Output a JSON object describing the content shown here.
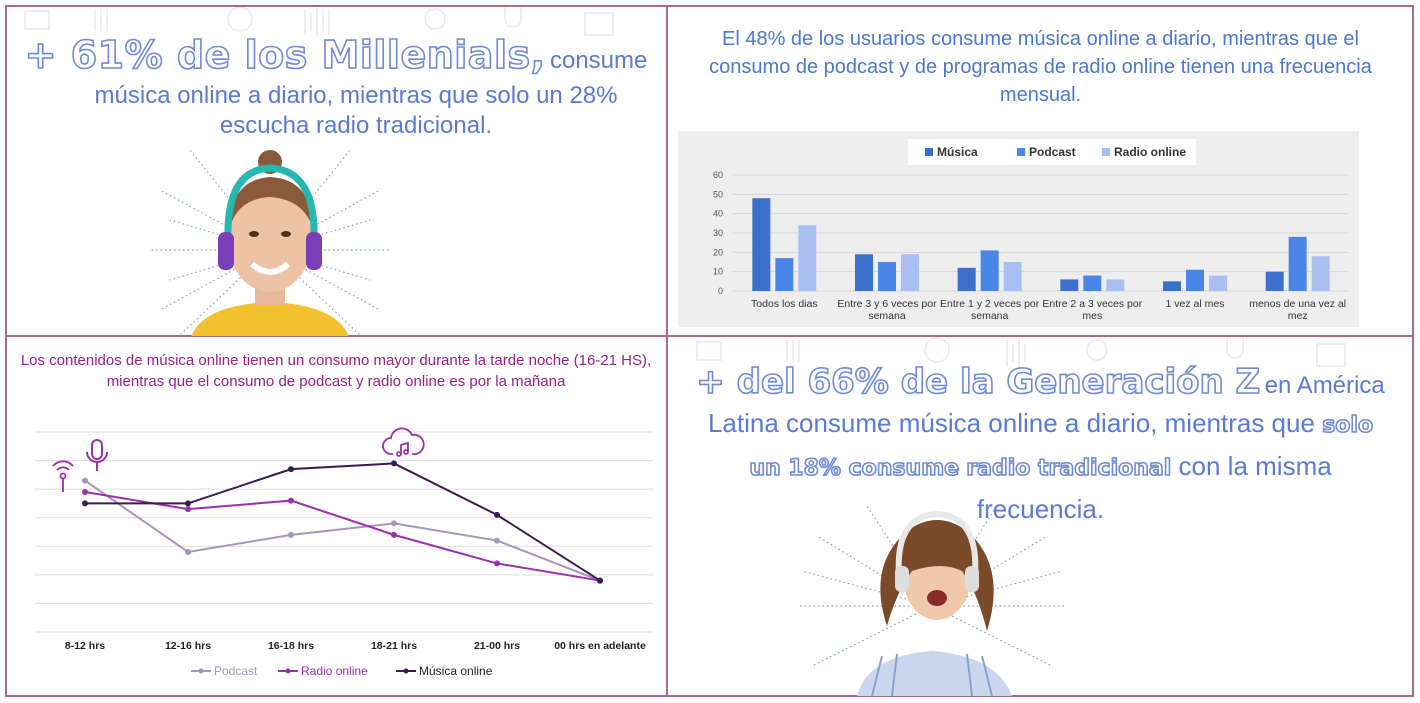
{
  "q1": {
    "headline_big": "+ 61% de los Millenials,",
    "headline_small": "consume",
    "line2": "música online a diario, mientras que solo un 28%",
    "line3": "escucha radio tradicional."
  },
  "q2": {
    "title": "El 48% de los usuarios consume música online a diario, mientras que el consumo de podcast y de programas de radio online tienen una frecuencia mensual."
  },
  "q3": {
    "title": "Los contenidos de música online tienen un consumo mayor durante la tarde noche (16-21 HS), mientras que el consumo de podcast y radio online es por la mañana"
  },
  "q4": {
    "big": "+ del 66% de la Generación Z",
    "medium": "en América",
    "line2_a": "Latina consume música online a diario, mientras que",
    "line2_b": "solo",
    "line3_a": "un 18% consume",
    "line3_b": "radio tradicional",
    "line3_c": "con la misma",
    "line4": "frecuencia."
  },
  "colors": {
    "musica_bar": "#3d6fcc",
    "podcast_bar": "#4a86e8",
    "radio_bar": "#a9bff2",
    "podcast_line": "#a993ba",
    "radio_line": "#9b2fae",
    "musica_line": "#3b1b52",
    "border": "#b0678e"
  },
  "icons": [
    "antenna-icon",
    "microphone-icon",
    "music-cloud-icon"
  ],
  "chart_data": [
    {
      "type": "bar",
      "legend_position": "top",
      "categories": [
        "Todos los dias",
        "Entre 3 y 6 veces por semana",
        "Entre 1 y 2 veces por semana",
        "Entre 2 a 3 veces por mes",
        "1 vez al mes",
        "menos de una vez al mez"
      ],
      "series": [
        {
          "name": "Música",
          "values": [
            48,
            19,
            12,
            6,
            5,
            10
          ]
        },
        {
          "name": "Podcast",
          "values": [
            17,
            15,
            21,
            8,
            11,
            28
          ]
        },
        {
          "name": "Radio online",
          "values": [
            34,
            19,
            15,
            6,
            8,
            18
          ]
        }
      ],
      "ylim": [
        0,
        60
      ],
      "yticks": [
        0,
        10,
        20,
        30,
        40,
        50,
        60
      ],
      "grid": true
    },
    {
      "type": "line",
      "legend_position": "bottom",
      "categories": [
        "8-12 hrs",
        "12-16 hrs",
        "16-18 hrs",
        "18-21 hrs",
        "21-00 hrs",
        "00 hrs en adelante"
      ],
      "series": [
        {
          "name": "Podcast",
          "values": [
            26.5,
            14,
            17,
            19,
            16,
            9
          ]
        },
        {
          "name": "Radio online",
          "values": [
            24.5,
            21.5,
            23,
            17,
            12,
            9
          ]
        },
        {
          "name": "Música online",
          "values": [
            22.5,
            22.5,
            28.5,
            29.5,
            20.5,
            9
          ]
        }
      ],
      "ylim": [
        0,
        35
      ],
      "grid": true
    }
  ]
}
